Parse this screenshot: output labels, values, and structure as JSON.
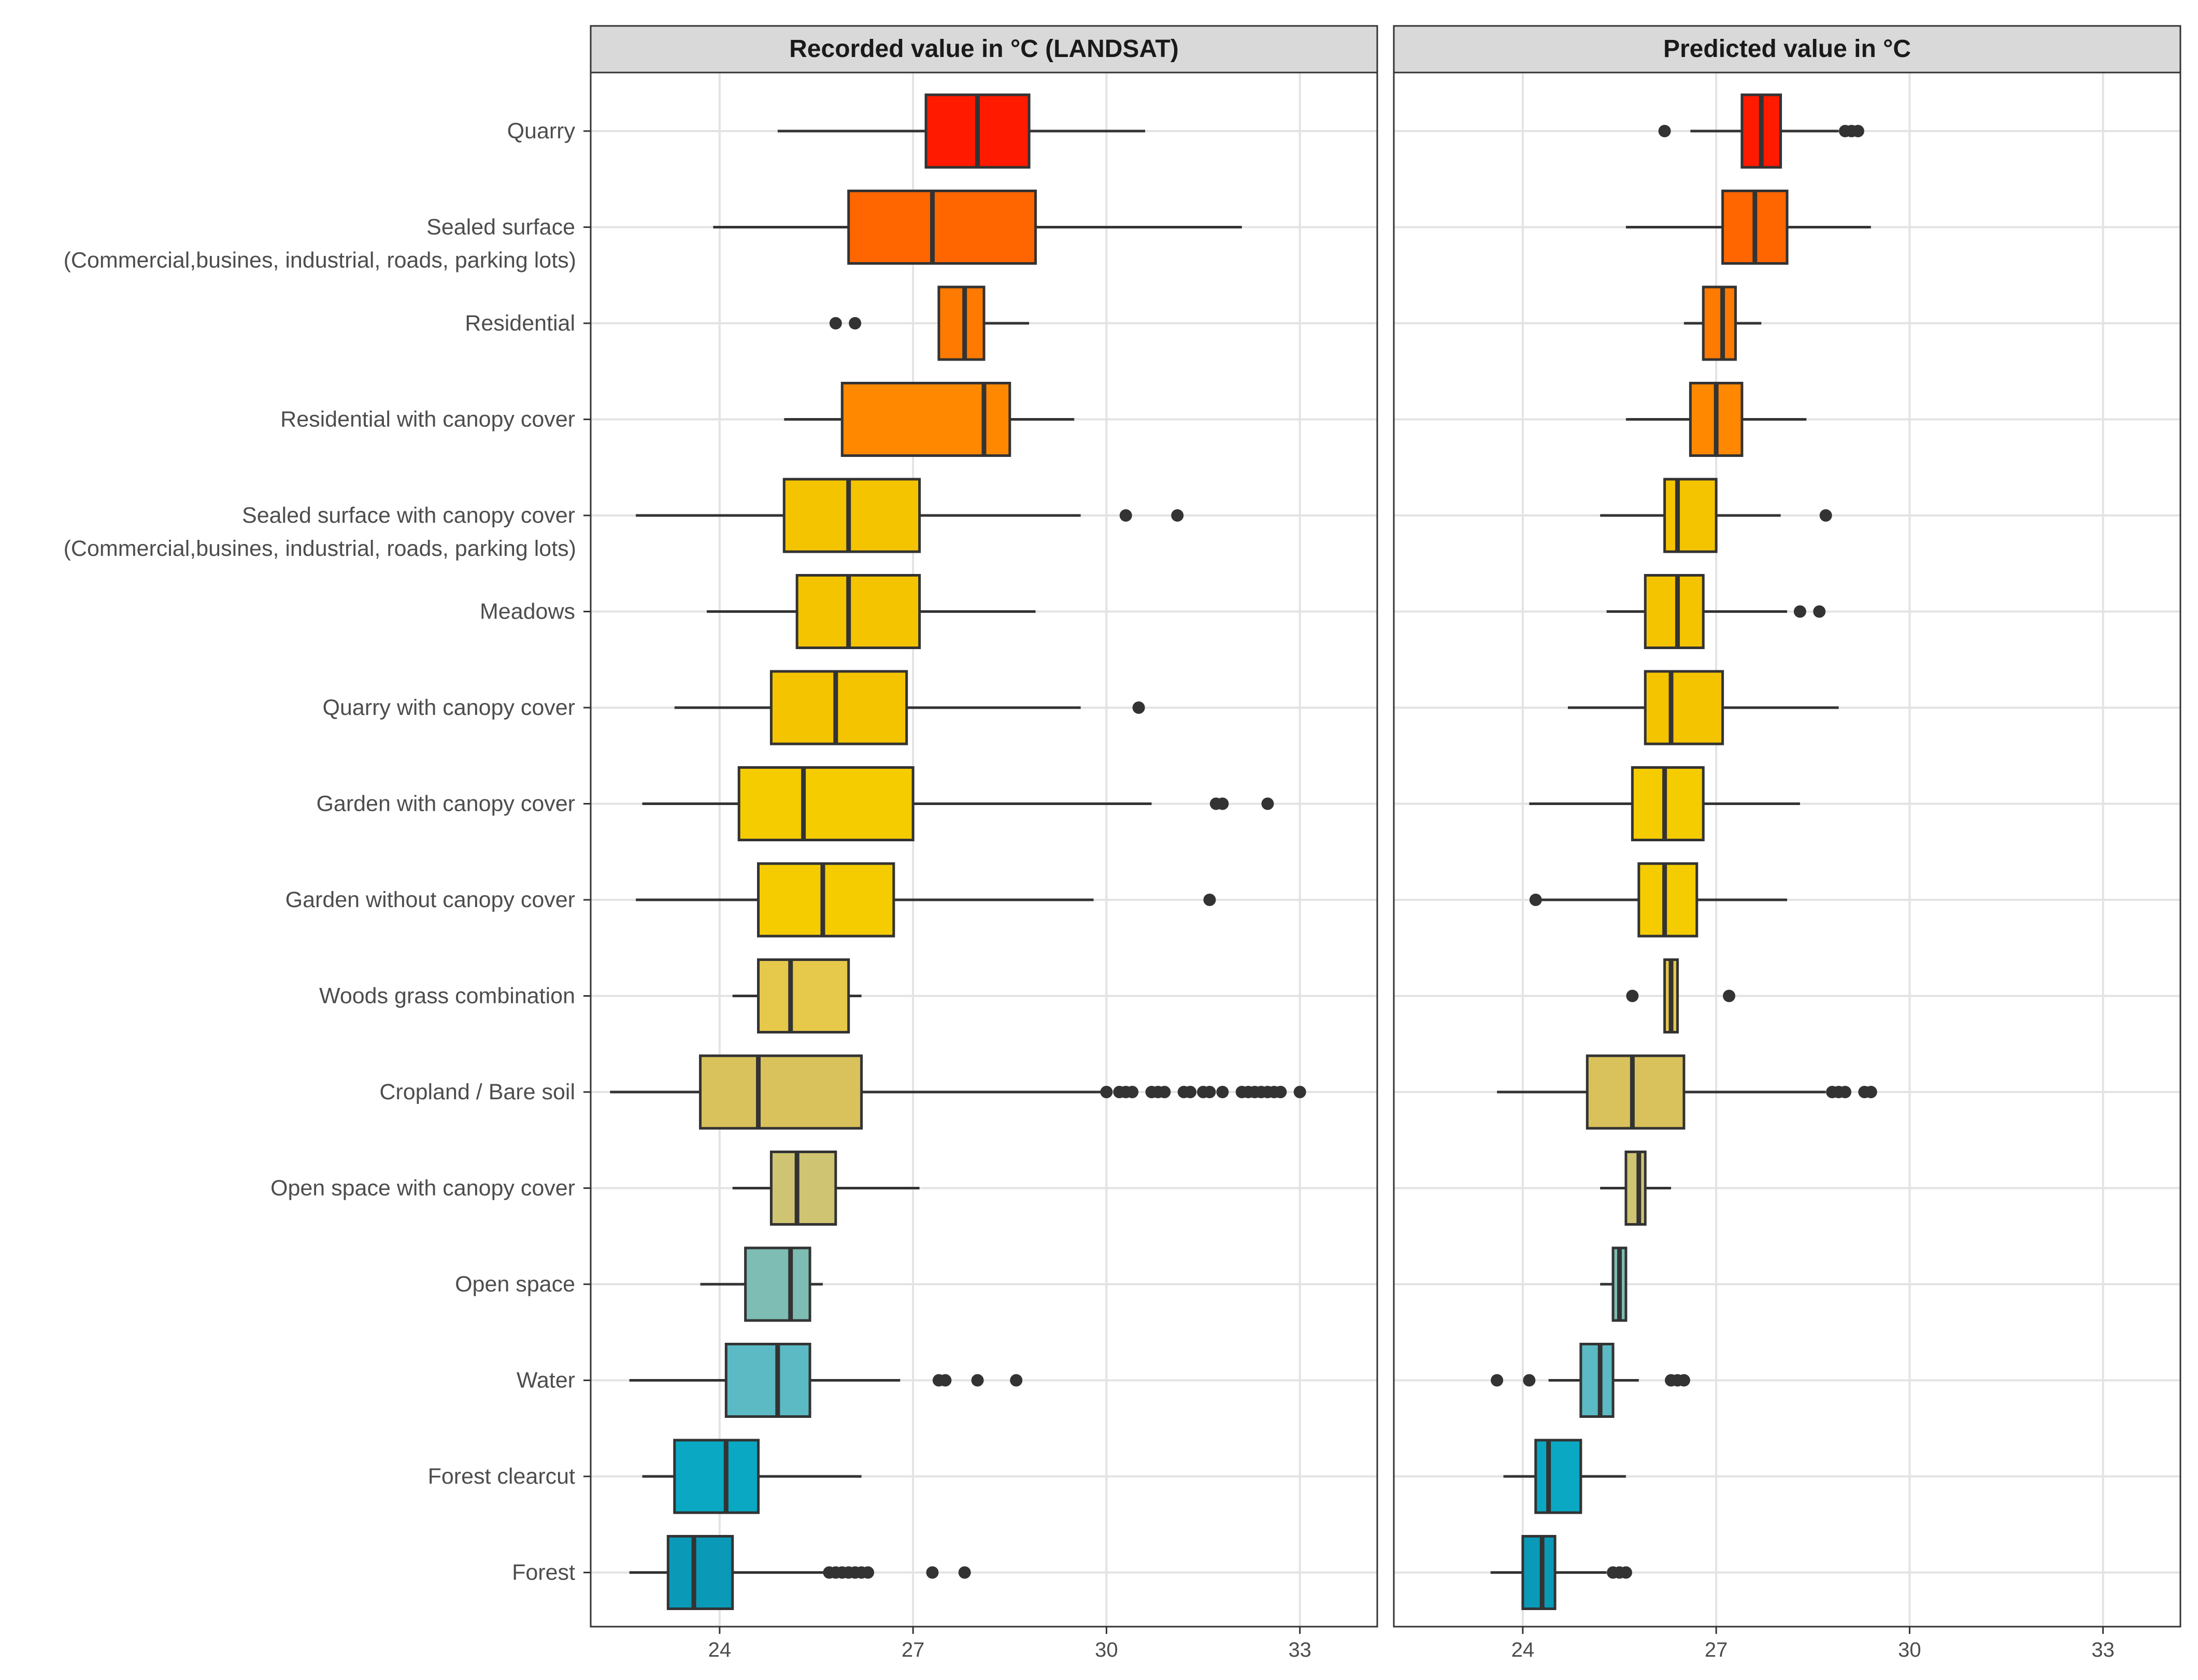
{
  "chart_data": {
    "type": "boxplot",
    "orientation": "horizontal",
    "x_ticks": [
      24,
      27,
      30,
      33
    ],
    "xlim": [
      22.0,
      34.2
    ],
    "grid": true,
    "legend": "none",
    "categories": [
      {
        "label": "Quarry",
        "color": "#ff1a00"
      },
      {
        "label": "Sealed surface",
        "label2": "(Commercial,busines, industrial, roads, parking lots)",
        "color": "#ff6600"
      },
      {
        "label": "Residential",
        "color": "#ff7a00"
      },
      {
        "label": "Residential with canopy cover",
        "color": "#ff8800"
      },
      {
        "label": "Sealed surface with canopy cover",
        "label2": "(Commercial,busines, industrial, roads, parking lots)",
        "color": "#f5c400"
      },
      {
        "label": "Meadows",
        "color": "#f5c400"
      },
      {
        "label": "Quarry  with canopy cover",
        "color": "#f5c400"
      },
      {
        "label": "Garden with canopy cover",
        "color": "#f5cc00"
      },
      {
        "label": "Garden without canopy cover",
        "color": "#f5cc00"
      },
      {
        "label": "Woods grass combination",
        "color": "#e6c84a"
      },
      {
        "label": "Cropland / Bare soil",
        "color": "#d9c25c"
      },
      {
        "label": "Open space with canopy cover",
        "color": "#cfc472"
      },
      {
        "label": "Open space",
        "color": "#7dbdb3"
      },
      {
        "label": "Water",
        "color": "#5bbac4"
      },
      {
        "label": "Forest clearcut",
        "color": "#0aa8c2"
      },
      {
        "label": "Forest",
        "color": "#0a9ab8"
      }
    ],
    "panels": [
      {
        "title": "Recorded value in °C (LANDSAT)",
        "boxes": [
          {
            "lw": 24.9,
            "q1": 27.2,
            "med": 28.0,
            "q3": 28.8,
            "uw": 30.6,
            "out": []
          },
          {
            "lw": 23.9,
            "q1": 26.0,
            "med": 27.3,
            "q3": 28.9,
            "uw": 32.1,
            "out": []
          },
          {
            "lw": 27.4,
            "q1": 27.4,
            "med": 27.8,
            "q3": 28.1,
            "uw": 28.8,
            "out": [
              25.8,
              26.1
            ]
          },
          {
            "lw": 25.0,
            "q1": 25.9,
            "med": 28.1,
            "q3": 28.5,
            "uw": 29.5,
            "out": []
          },
          {
            "lw": 22.7,
            "q1": 25.0,
            "med": 26.0,
            "q3": 27.1,
            "uw": 29.6,
            "out": [
              30.3,
              31.1
            ]
          },
          {
            "lw": 23.8,
            "q1": 25.2,
            "med": 26.0,
            "q3": 27.1,
            "uw": 28.9,
            "out": []
          },
          {
            "lw": 23.3,
            "q1": 24.8,
            "med": 25.8,
            "q3": 26.9,
            "uw": 29.6,
            "out": [
              30.5
            ]
          },
          {
            "lw": 22.8,
            "q1": 24.3,
            "med": 25.3,
            "q3": 27.0,
            "uw": 30.7,
            "out": [
              31.7,
              31.8,
              32.5
            ]
          },
          {
            "lw": 22.7,
            "q1": 24.6,
            "med": 25.6,
            "q3": 26.7,
            "uw": 29.8,
            "out": [
              31.6
            ]
          },
          {
            "lw": 24.2,
            "q1": 24.6,
            "med": 25.1,
            "q3": 26.0,
            "uw": 26.2,
            "out": []
          },
          {
            "lw": 22.3,
            "q1": 23.7,
            "med": 24.6,
            "q3": 26.2,
            "uw": 30.0,
            "out": [
              30.0,
              30.2,
              30.3,
              30.4,
              30.7,
              30.8,
              30.9,
              31.2,
              31.3,
              31.5,
              31.6,
              31.8,
              32.1,
              32.2,
              32.3,
              32.4,
              32.5,
              32.6,
              32.7,
              33.0
            ]
          },
          {
            "lw": 24.2,
            "q1": 24.8,
            "med": 25.2,
            "q3": 25.8,
            "uw": 27.1,
            "out": []
          },
          {
            "lw": 23.7,
            "q1": 24.4,
            "med": 25.1,
            "q3": 25.4,
            "uw": 25.6,
            "out": []
          },
          {
            "lw": 22.6,
            "q1": 24.1,
            "med": 24.9,
            "q3": 25.4,
            "uw": 26.8,
            "out": [
              27.4,
              27.5,
              28.0,
              28.6
            ]
          },
          {
            "lw": 22.8,
            "q1": 23.3,
            "med": 24.1,
            "q3": 24.6,
            "uw": 26.2,
            "out": []
          },
          {
            "lw": 22.6,
            "q1": 23.2,
            "med": 23.6,
            "q3": 24.2,
            "uw": 25.7,
            "out": [
              25.7,
              25.8,
              25.9,
              26.0,
              26.1,
              26.2,
              26.3,
              27.3,
              27.8
            ]
          }
        ]
      },
      {
        "title": "Predicted value in °C",
        "boxes": [
          {
            "lw": 26.6,
            "q1": 27.4,
            "med": 27.7,
            "q3": 28.0,
            "uw": 28.9,
            "out": [
              26.2,
              29.0,
              29.1,
              29.2
            ]
          },
          {
            "lw": 25.6,
            "q1": 27.1,
            "med": 27.6,
            "q3": 28.1,
            "uw": 29.4,
            "out": []
          },
          {
            "lw": 26.5,
            "q1": 26.8,
            "med": 27.1,
            "q3": 27.3,
            "uw": 27.7,
            "out": []
          },
          {
            "lw": 25.6,
            "q1": 26.6,
            "med": 27.0,
            "q3": 27.4,
            "uw": 28.4,
            "out": []
          },
          {
            "lw": 25.2,
            "q1": 26.2,
            "med": 26.4,
            "q3": 27.0,
            "uw": 28.0,
            "out": [
              28.7
            ]
          },
          {
            "lw": 25.3,
            "q1": 25.9,
            "med": 26.4,
            "q3": 26.8,
            "uw": 28.1,
            "out": [
              28.3,
              28.6
            ]
          },
          {
            "lw": 24.7,
            "q1": 25.9,
            "med": 26.3,
            "q3": 27.1,
            "uw": 28.9,
            "out": []
          },
          {
            "lw": 24.1,
            "q1": 25.7,
            "med": 26.2,
            "q3": 26.8,
            "uw": 28.3,
            "out": []
          },
          {
            "lw": 24.2,
            "q1": 25.8,
            "med": 26.2,
            "q3": 26.7,
            "uw": 28.1,
            "out": [
              24.2
            ]
          },
          {
            "lw": 26.2,
            "q1": 26.2,
            "med": 26.3,
            "q3": 26.4,
            "uw": 26.4,
            "out": [
              25.7,
              27.2
            ]
          },
          {
            "lw": 23.6,
            "q1": 25.0,
            "med": 25.7,
            "q3": 26.5,
            "uw": 28.7,
            "out": [
              28.8,
              28.9,
              29.0,
              29.3,
              29.4
            ]
          },
          {
            "lw": 25.2,
            "q1": 25.6,
            "med": 25.8,
            "q3": 25.9,
            "uw": 26.3,
            "out": []
          },
          {
            "lw": 25.2,
            "q1": 25.4,
            "med": 25.5,
            "q3": 25.6,
            "uw": 25.6,
            "out": []
          },
          {
            "lw": 24.4,
            "q1": 24.9,
            "med": 25.2,
            "q3": 25.4,
            "uw": 25.8,
            "out": [
              23.6,
              24.1,
              26.3,
              26.4,
              26.5
            ]
          },
          {
            "lw": 23.7,
            "q1": 24.2,
            "med": 24.4,
            "q3": 24.9,
            "uw": 25.6,
            "out": []
          },
          {
            "lw": 23.5,
            "q1": 24.0,
            "med": 24.3,
            "q3": 24.5,
            "uw": 25.3,
            "out": [
              25.4,
              25.5,
              25.6
            ]
          }
        ]
      }
    ]
  }
}
